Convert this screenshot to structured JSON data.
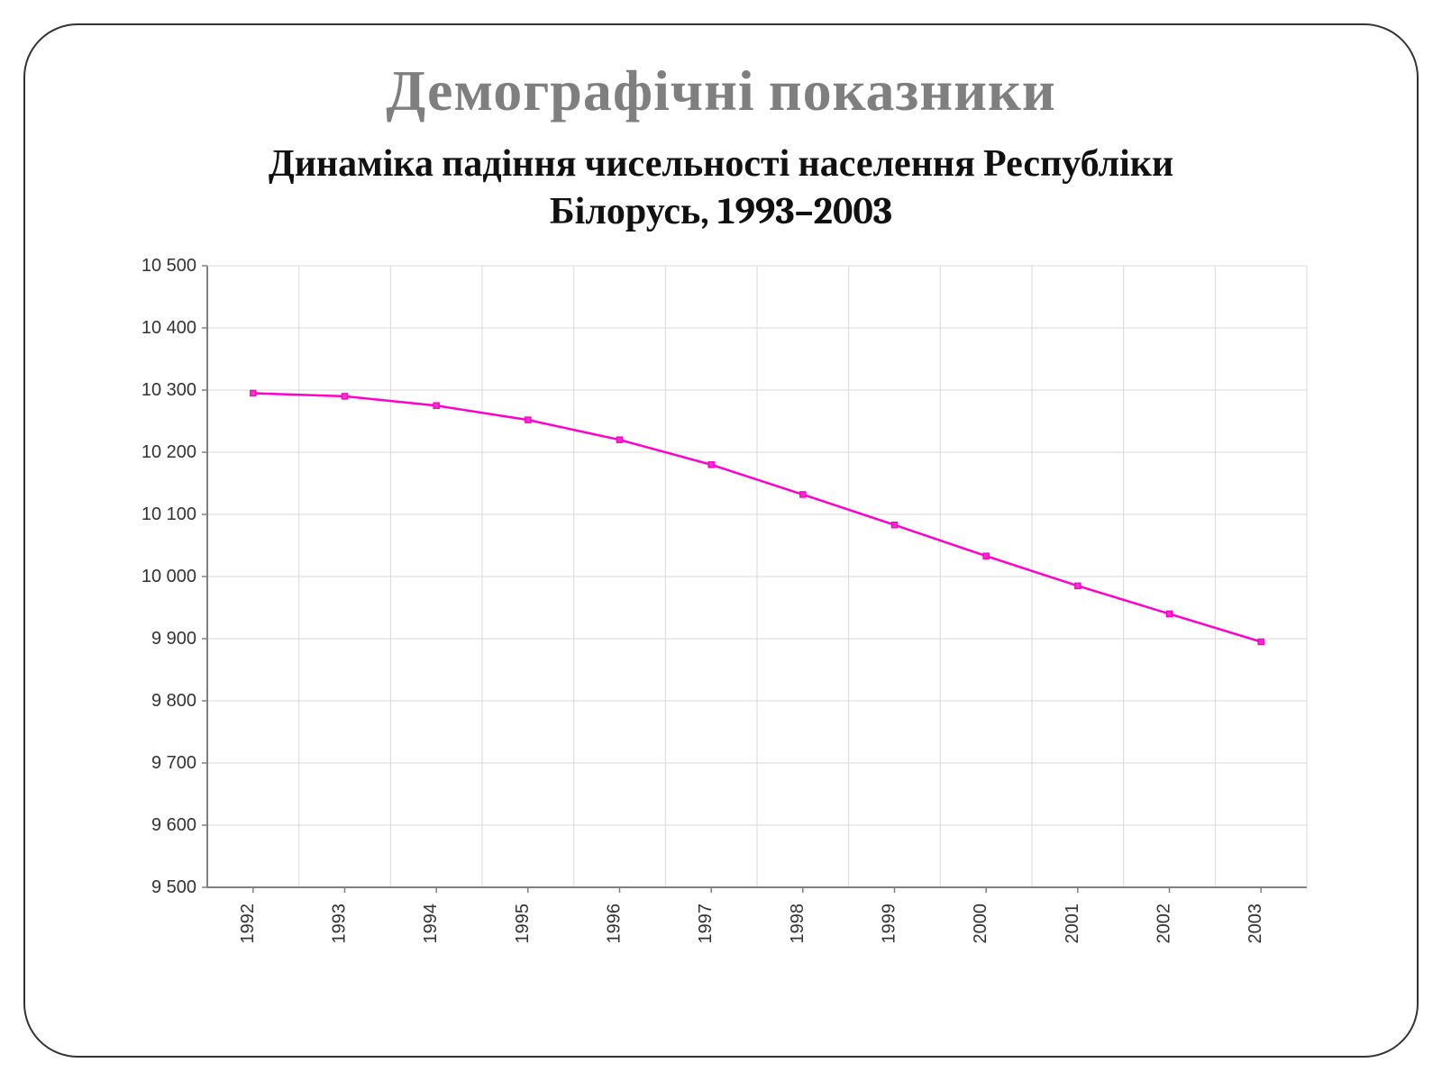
{
  "title": "Демографічні показники",
  "title_fontsize": 64,
  "title_color": "#7f7f7f",
  "subtitle": "Динаміка падіння чисельності населення Республіки Білорусь, 1993–2003",
  "subtitle_fontsize": 42,
  "subtitle_color": "#111111",
  "chart": {
    "type": "line",
    "background_color": "#ffffff",
    "plot_border_color": "#808080",
    "grid_color": "#d9d9d9",
    "line_color": "#ff00cc",
    "marker_color": "#ff00cc",
    "marker_fill": "#ff33cc",
    "line_width": 2.5,
    "marker_size": 6,
    "marker_style": "square",
    "ylim": [
      9500,
      10500
    ],
    "ytick_step": 100,
    "ytick_labels": [
      "9 500",
      "9 600",
      "9 700",
      "9 800",
      "9 900",
      "10 000",
      "10 100",
      "10 200",
      "10 300",
      "10 400",
      "10 500"
    ],
    "ytick_values": [
      9500,
      9600,
      9700,
      9800,
      9900,
      10000,
      10100,
      10200,
      10300,
      10400,
      10500
    ],
    "tick_fontsize": 20,
    "x_categories": [
      "1992",
      "1993",
      "1994",
      "1995",
      "1996",
      "1997",
      "1998",
      "1999",
      "2000",
      "2001",
      "2002",
      "2003"
    ],
    "values": [
      10295,
      10290,
      10275,
      10252,
      10220,
      10180,
      10132,
      10083,
      10033,
      9985,
      9940,
      9895
    ]
  }
}
